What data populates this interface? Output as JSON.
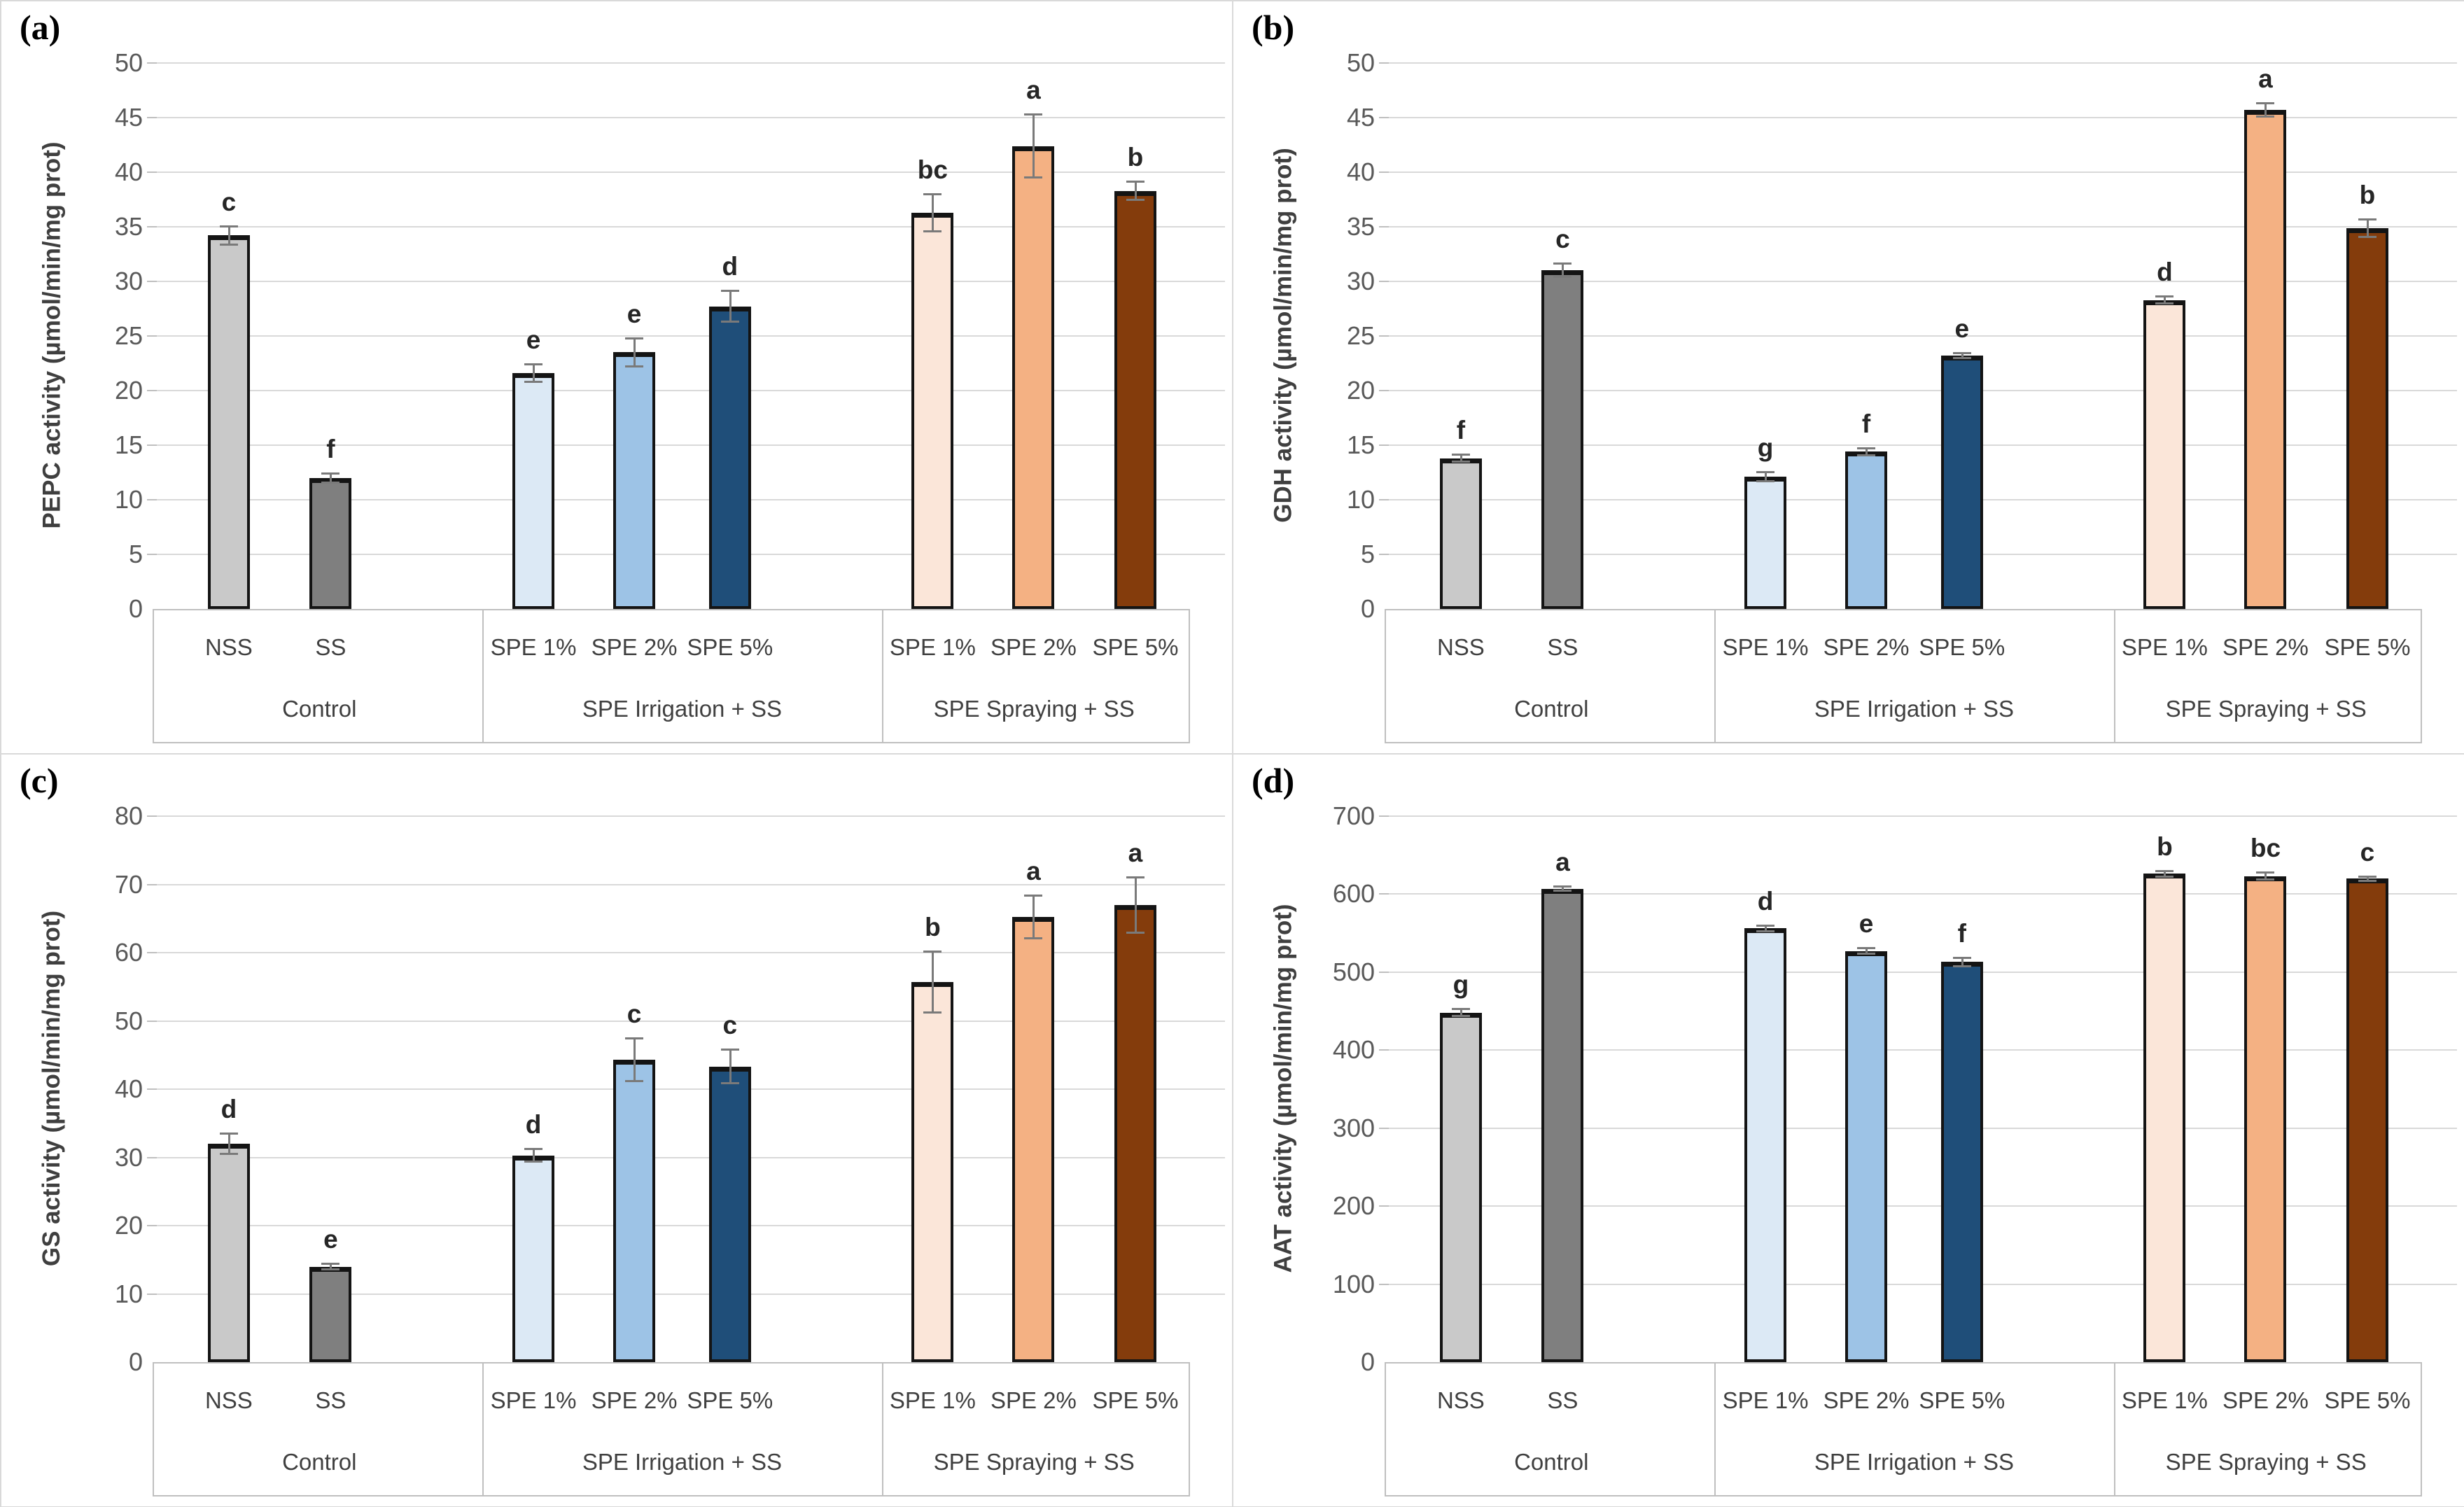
{
  "style": {
    "bar_colors": [
      "#c9c9c9",
      "#7f7f7f",
      "#dce9f5",
      "#9dc3e6",
      "#1f4e79",
      "#fbe6d9",
      "#f4b183",
      "#843c0c"
    ],
    "bar_border_color": "#141414",
    "grid_color": "#d9d9d9",
    "tick_label_color": "#595959",
    "axis_title_color": "#3f3f3f",
    "sig_letter_color": "#262626",
    "error_bar_color": "#7a7a7a",
    "table_border_color": "#bfbfbf",
    "background": "#ffffff"
  },
  "chart_data": [
    {
      "id": "a",
      "panel_letter": "(a)",
      "type": "bar",
      "title": "",
      "xlabel": "",
      "ylabel": "PEPC activity (µmol/min/mg prot)",
      "ylim": [
        0,
        50
      ],
      "ytick_step": 5,
      "grid": true,
      "legend_position": "none",
      "groups": [
        {
          "label": "Control",
          "categories": [
            "NSS",
            "SS"
          ],
          "values": [
            34.2,
            12.0
          ],
          "errors": [
            0.9,
            0.5
          ],
          "letters": [
            "c",
            "f"
          ]
        },
        {
          "label": "SPE Irrigation + SS",
          "categories": [
            "SPE 1%",
            "SPE 2%",
            "SPE 5%"
          ],
          "values": [
            21.6,
            23.5,
            27.7
          ],
          "errors": [
            0.9,
            1.4,
            1.5
          ],
          "letters": [
            "e",
            "e",
            "d"
          ]
        },
        {
          "label": "SPE Spraying + SS",
          "categories": [
            "SPE 1%",
            "SPE 2%",
            "SPE 5%"
          ],
          "values": [
            36.3,
            42.4,
            38.3
          ],
          "errors": [
            1.8,
            3.0,
            0.9
          ],
          "letters": [
            "bc",
            "a",
            "b"
          ]
        }
      ]
    },
    {
      "id": "b",
      "panel_letter": "(b)",
      "type": "bar",
      "title": "",
      "xlabel": "",
      "ylabel": "GDH activity (µmol/min/mg prot)",
      "ylim": [
        0,
        50
      ],
      "ytick_step": 5,
      "grid": true,
      "legend_position": "none",
      "groups": [
        {
          "label": "Control",
          "categories": [
            "NSS",
            "SS"
          ],
          "values": [
            13.8,
            31.0
          ],
          "errors": [
            0.4,
            0.7
          ],
          "letters": [
            "f",
            "c"
          ]
        },
        {
          "label": "SPE Irrigation + SS",
          "categories": [
            "SPE 1%",
            "SPE 2%",
            "SPE 5%"
          ],
          "values": [
            12.1,
            14.4,
            23.2
          ],
          "errors": [
            0.5,
            0.4,
            0.3
          ],
          "letters": [
            "g",
            "f",
            "e"
          ]
        },
        {
          "label": "SPE Spraying + SS",
          "categories": [
            "SPE 1%",
            "SPE 2%",
            "SPE 5%"
          ],
          "values": [
            28.3,
            45.7,
            34.9
          ],
          "errors": [
            0.4,
            0.7,
            0.9
          ],
          "letters": [
            "d",
            "a",
            "b"
          ]
        }
      ]
    },
    {
      "id": "c",
      "panel_letter": "(c)",
      "type": "bar",
      "title": "",
      "xlabel": "",
      "ylabel": "GS activity (µmol/min/mg prot)",
      "ylim": [
        0,
        80
      ],
      "ytick_step": 10,
      "grid": true,
      "legend_position": "none",
      "groups": [
        {
          "label": "Control",
          "categories": [
            "NSS",
            "SS"
          ],
          "values": [
            32.0,
            14.0
          ],
          "errors": [
            1.6,
            0.6
          ],
          "letters": [
            "d",
            "e"
          ]
        },
        {
          "label": "SPE Irrigation + SS",
          "categories": [
            "SPE 1%",
            "SPE 2%",
            "SPE 5%"
          ],
          "values": [
            30.3,
            44.3,
            43.3
          ],
          "errors": [
            1.1,
            3.3,
            2.6
          ],
          "letters": [
            "d",
            "c",
            "c"
          ]
        },
        {
          "label": "SPE Spraying + SS",
          "categories": [
            "SPE 1%",
            "SPE 2%",
            "SPE 5%"
          ],
          "values": [
            55.7,
            65.2,
            67.0
          ],
          "errors": [
            4.6,
            3.3,
            4.2
          ],
          "letters": [
            "b",
            "a",
            "a"
          ]
        }
      ]
    },
    {
      "id": "d",
      "panel_letter": "(d)",
      "type": "bar",
      "title": "",
      "xlabel": "",
      "ylabel": "AAT activity (µmol/min/mg prot)",
      "ylim": [
        0,
        700
      ],
      "ytick_step": 100,
      "grid": true,
      "legend_position": "none",
      "groups": [
        {
          "label": "Control",
          "categories": [
            "NSS",
            "SS"
          ],
          "values": [
            448,
            607
          ],
          "errors": [
            6,
            4
          ],
          "letters": [
            "g",
            "a"
          ]
        },
        {
          "label": "SPE Irrigation + SS",
          "categories": [
            "SPE 1%",
            "SPE 2%",
            "SPE 5%"
          ],
          "values": [
            556,
            527,
            513
          ],
          "errors": [
            5,
            5,
            7
          ],
          "letters": [
            "d",
            "e",
            "f"
          ]
        },
        {
          "label": "SPE Spraying + SS",
          "categories": [
            "SPE 1%",
            "SPE 2%",
            "SPE 5%"
          ],
          "values": [
            626,
            623,
            620
          ],
          "errors": [
            5,
            6,
            4
          ],
          "letters": [
            "b",
            "bc",
            "c"
          ]
        }
      ]
    }
  ]
}
